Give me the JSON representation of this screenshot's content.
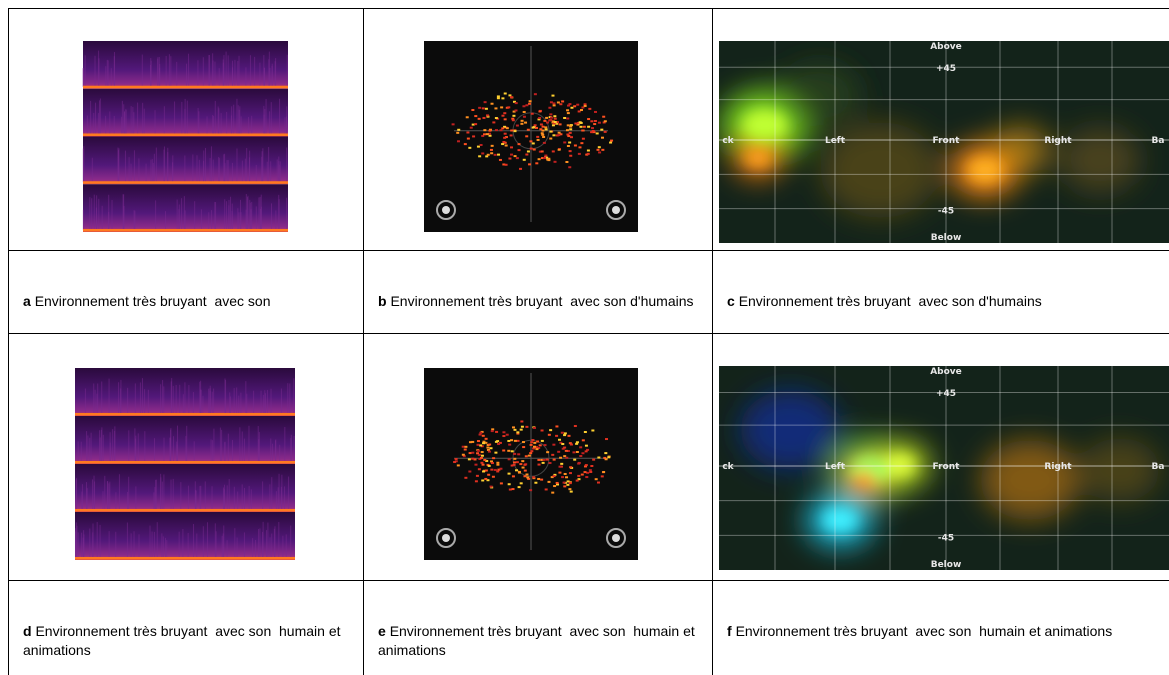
{
  "panels": [
    {
      "letter": "a",
      "caption": "Environnement très bruyant  avec son"
    },
    {
      "letter": "b",
      "caption": "Environnement très bruyant  avec son d'humains"
    },
    {
      "letter": "c",
      "caption": "Environnement très bruyant  avec son d'humains"
    },
    {
      "letter": "d",
      "caption": "Environnement très bruyant  avec son  humain et animations"
    },
    {
      "letter": "e",
      "caption": "Environnement très bruyant  avec son  humain et animations"
    },
    {
      "letter": "f",
      "caption": "Environnement très bruyant  avec son  humain et animations"
    }
  ],
  "heatmaps": [
    {
      "labels": [
        "Above",
        "+45",
        "ck",
        "Left",
        "Front",
        "Right",
        "Ba",
        "-45",
        "Below"
      ]
    },
    {
      "labels": [
        "Above",
        "+45",
        "ck",
        "Left",
        "Front",
        "Right",
        "Ba",
        "-45",
        "Below"
      ]
    }
  ]
}
